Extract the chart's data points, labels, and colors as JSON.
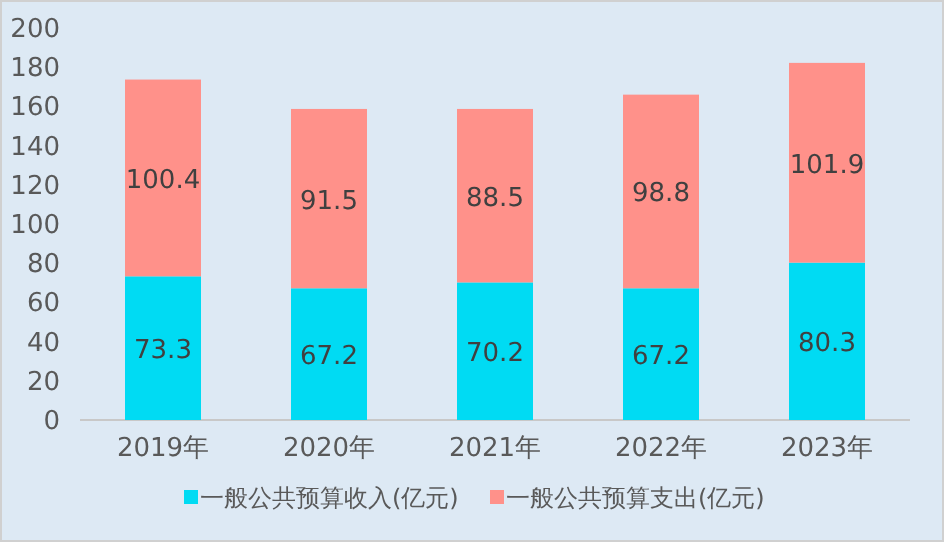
{
  "chart_data": {
    "type": "bar",
    "stacked": true,
    "data_labels": true,
    "legend": "bottom",
    "grid": false,
    "categories": [
      "2019年",
      "2020年",
      "2021年",
      "2022年",
      "2023年"
    ],
    "ylim": [
      0,
      200
    ],
    "yticks": [
      0,
      20,
      40,
      60,
      80,
      100,
      120,
      140,
      160,
      180,
      200
    ],
    "series": [
      {
        "name": "一般公共预算收入(亿元)",
        "color": "#00dbf3",
        "values": [
          73.3,
          67.2,
          70.2,
          67.2,
          80.3
        ]
      },
      {
        "name": "一般公共预算支出(亿元)",
        "color": "#ff918a",
        "values": [
          100.4,
          91.5,
          88.5,
          98.8,
          101.9
        ]
      }
    ]
  }
}
